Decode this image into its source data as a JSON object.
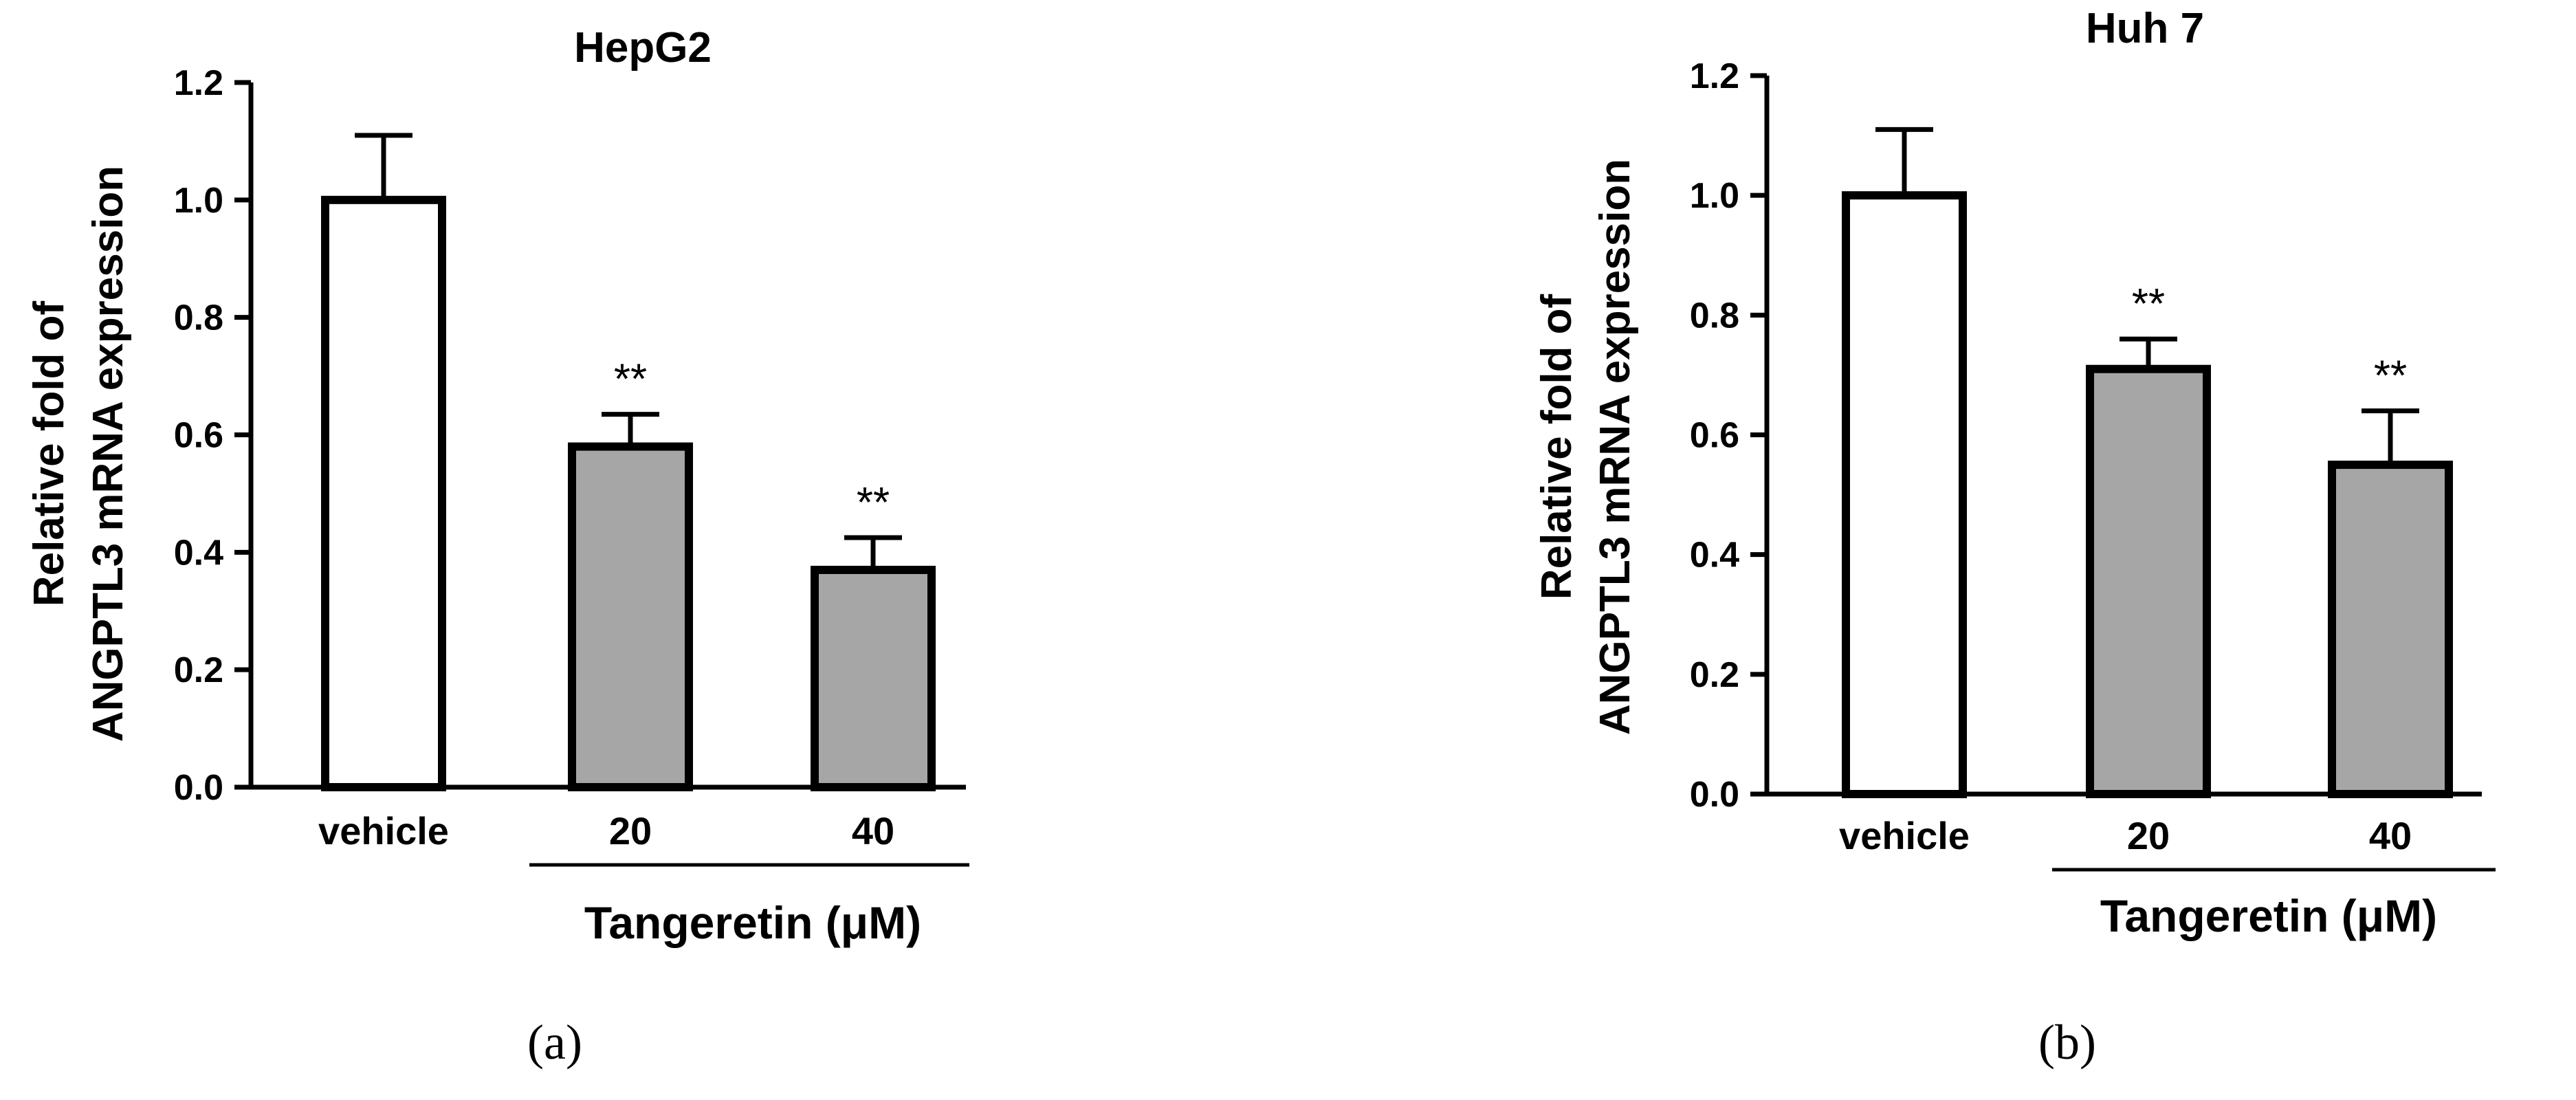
{
  "colors": {
    "vehicle_fill": "#ffffff",
    "treated_fill": "#a6a6a6",
    "stroke": "#000000"
  },
  "chart_data": [
    {
      "type": "bar",
      "panel_label": "(a)",
      "title": "HepG2",
      "ylabel_line1": "Relative fold of",
      "ylabel_line2": "ANGPTL3 mRNA expression",
      "ylim": [
        0,
        1.2
      ],
      "yticks": [
        "0.0",
        "0.2",
        "0.4",
        "0.6",
        "0.8",
        "1.0",
        "1.2"
      ],
      "categories": [
        "vehicle",
        "20",
        "40"
      ],
      "values": [
        1.0,
        0.58,
        0.37
      ],
      "errors": [
        0.11,
        0.055,
        0.055
      ],
      "significance": [
        "",
        "**",
        "**"
      ],
      "group_label": "Tangeretin (μM)",
      "grid": false
    },
    {
      "type": "bar",
      "panel_label": "(b)",
      "title": "Huh 7",
      "ylabel_line1": "Relative fold of",
      "ylabel_line2": "ANGPTL3 mRNA expression",
      "ylim": [
        0,
        1.2
      ],
      "yticks": [
        "0.0",
        "0.2",
        "0.4",
        "0.6",
        "0.8",
        "1.0",
        "1.2"
      ],
      "categories": [
        "vehicle",
        "20",
        "40"
      ],
      "values": [
        1.0,
        0.71,
        0.55
      ],
      "errors": [
        0.11,
        0.05,
        0.09
      ],
      "significance": [
        "",
        "**",
        "**"
      ],
      "group_label": "Tangeretin (μM)",
      "grid": false
    }
  ]
}
